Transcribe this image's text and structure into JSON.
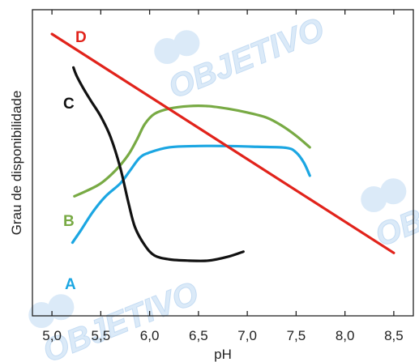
{
  "watermark": {
    "text": "OBJETIVO",
    "colors": {
      "fill": "#dbeaf8",
      "stroke": "#c5dcf3"
    }
  },
  "chart_data": {
    "type": "line",
    "title": "",
    "xlabel": "pH",
    "ylabel": "Grau de disponibilidade",
    "xlim": [
      4.8,
      8.7
    ],
    "ylim": [
      0,
      1
    ],
    "x_ticks": [
      5.0,
      5.5,
      6.0,
      6.5,
      7.0,
      7.5,
      8.0,
      8.5
    ],
    "x_tick_labels": [
      "5,0",
      "5,5",
      "6,0",
      "6,5",
      "7,0",
      "7,5",
      "8,0",
      "8,5"
    ],
    "grid": false,
    "legend": "none",
    "series": [
      {
        "name": "A",
        "color": "#1ba6e2",
        "points": [
          [
            5.21,
            0.19
          ],
          [
            5.3,
            0.24
          ],
          [
            5.42,
            0.31
          ],
          [
            5.55,
            0.37
          ],
          [
            5.7,
            0.42
          ],
          [
            5.8,
            0.47
          ],
          [
            5.9,
            0.52
          ],
          [
            6.0,
            0.54
          ],
          [
            6.2,
            0.56
          ],
          [
            6.5,
            0.565
          ],
          [
            6.8,
            0.565
          ],
          [
            7.1,
            0.562
          ],
          [
            7.4,
            0.558
          ],
          [
            7.5,
            0.54
          ],
          [
            7.58,
            0.5
          ],
          [
            7.64,
            0.45
          ]
        ]
      },
      {
        "name": "B",
        "color": "#78aa44",
        "points": [
          [
            5.23,
            0.37
          ],
          [
            5.35,
            0.39
          ],
          [
            5.5,
            0.42
          ],
          [
            5.65,
            0.47
          ],
          [
            5.78,
            0.53
          ],
          [
            5.87,
            0.59
          ],
          [
            5.95,
            0.65
          ],
          [
            6.05,
            0.69
          ],
          [
            6.2,
            0.71
          ],
          [
            6.4,
            0.72
          ],
          [
            6.6,
            0.72
          ],
          [
            6.8,
            0.71
          ],
          [
            7.0,
            0.695
          ],
          [
            7.2,
            0.675
          ],
          [
            7.35,
            0.645
          ],
          [
            7.5,
            0.605
          ],
          [
            7.64,
            0.56
          ]
        ]
      },
      {
        "name": "C",
        "color": "#111111",
        "points": [
          [
            5.22,
            0.87
          ],
          [
            5.25,
            0.84
          ],
          [
            5.32,
            0.79
          ],
          [
            5.4,
            0.74
          ],
          [
            5.5,
            0.68
          ],
          [
            5.6,
            0.6
          ],
          [
            5.7,
            0.48
          ],
          [
            5.78,
            0.35
          ],
          [
            5.85,
            0.25
          ],
          [
            5.95,
            0.18
          ],
          [
            6.05,
            0.14
          ],
          [
            6.2,
            0.125
          ],
          [
            6.4,
            0.12
          ],
          [
            6.6,
            0.12
          ],
          [
            6.8,
            0.135
          ],
          [
            6.96,
            0.155
          ]
        ]
      },
      {
        "name": "D",
        "color": "#e1231b",
        "points": [
          [
            5.0,
            1.0
          ],
          [
            8.5,
            0.15
          ]
        ]
      }
    ]
  }
}
